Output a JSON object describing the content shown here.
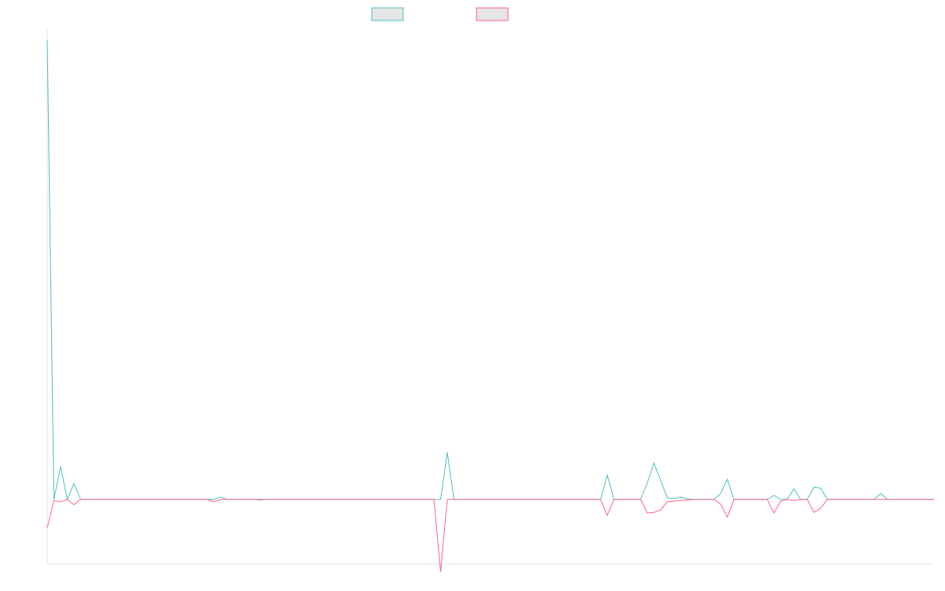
{
  "chart_data": {
    "type": "line",
    "title": "",
    "xlabel": "",
    "ylabel": "",
    "grid": false,
    "legend_position": "top-center",
    "ylim": [
      -11,
      80
    ],
    "series": [
      {
        "color": "#4bc0c0",
        "legend_fill": "#e5e5e5",
        "values": [
          78,
          0,
          5.6,
          0,
          2.7,
          0,
          0,
          0,
          0,
          0,
          0,
          0,
          0,
          0,
          0,
          0,
          0,
          0,
          0,
          0,
          0,
          0,
          0,
          0,
          0,
          0,
          0.4,
          0,
          0,
          0,
          0,
          0,
          -0.1,
          0,
          0,
          0,
          0,
          0,
          0,
          0,
          0,
          0,
          0,
          0,
          0,
          0,
          0,
          0,
          0,
          0,
          0,
          0,
          0,
          0,
          0,
          0,
          0,
          0,
          0,
          0,
          8.0,
          0,
          0,
          0,
          0,
          0,
          0,
          0,
          0,
          0,
          0,
          0,
          0,
          0,
          0,
          0,
          0,
          0,
          0,
          0,
          0,
          0,
          0,
          0,
          4.1,
          0,
          0,
          0,
          0,
          0,
          2.8,
          6.2,
          3.2,
          0.3,
          0.1,
          0.4,
          0.1,
          0,
          0,
          0,
          0,
          1.0,
          3.4,
          0,
          0,
          0,
          0,
          0,
          0,
          0.7,
          0,
          0,
          1.8,
          0,
          0,
          2.1,
          1.9,
          0,
          0,
          0,
          0,
          0,
          0,
          0,
          0,
          1.0,
          0,
          0,
          0,
          0,
          0,
          0,
          0,
          0
        ]
      },
      {
        "color": "#ff6384",
        "legend_fill": "#e5e5e5",
        "values": [
          -4.8,
          -0.2,
          -0.4,
          0,
          -0.9,
          0,
          0,
          0,
          0,
          0,
          0,
          0,
          0,
          0,
          0,
          0,
          0,
          0,
          0,
          0,
          0,
          0,
          0,
          0,
          0,
          -0.4,
          0,
          0,
          0,
          0,
          0,
          0,
          0,
          0,
          0,
          0,
          0,
          0,
          0,
          0,
          0,
          0,
          0,
          0,
          0,
          0,
          0,
          0,
          0,
          0,
          0,
          0,
          0,
          0,
          0,
          0,
          0,
          0,
          0,
          -12.3,
          0,
          0,
          0,
          0,
          0,
          0,
          0,
          0,
          0,
          0,
          0,
          0,
          0,
          0,
          0,
          0,
          0,
          0,
          0,
          0,
          0,
          0,
          0,
          0,
          -2.7,
          0,
          0,
          0,
          0,
          0,
          -2.3,
          -2.2,
          -1.8,
          -0.4,
          -0.3,
          -0.2,
          -0.1,
          0,
          0,
          0,
          0,
          -0.8,
          -3.0,
          0,
          0,
          0,
          0,
          0,
          0,
          -2.3,
          -0.3,
          0,
          -0.2,
          0,
          0,
          -2.2,
          -1.5,
          0,
          0,
          0,
          0,
          0,
          0,
          0,
          0,
          0,
          0,
          0,
          0,
          0,
          0,
          0,
          0,
          0
        ]
      }
    ]
  }
}
